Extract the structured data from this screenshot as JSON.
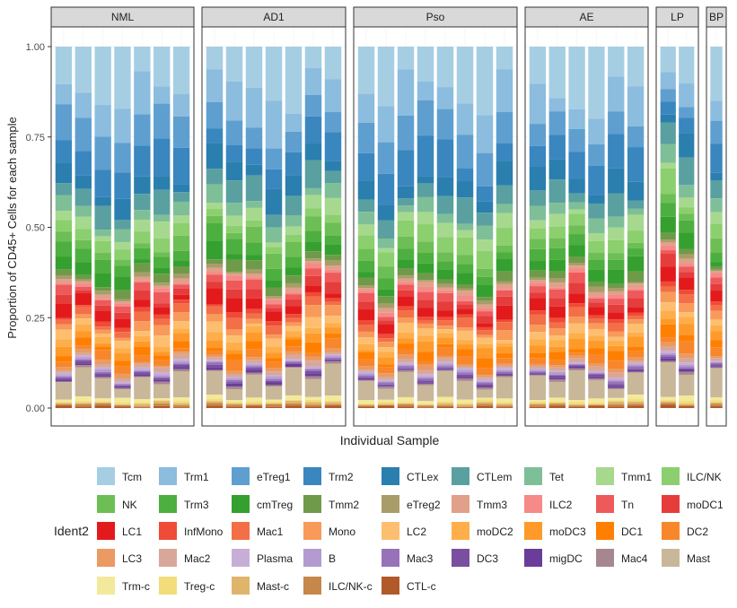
{
  "chart_data": {
    "type": "bar",
    "stacked": true,
    "facetted": true,
    "xlabel": "Individual Sample",
    "ylabel": "Proportion of CD45+ Cells for each sample",
    "ylim": [
      0,
      1
    ],
    "yticks": [
      "0.00",
      "0.25",
      "0.50",
      "0.75",
      "1.00"
    ],
    "legend": {
      "title": "Ident2",
      "placement": "bottom",
      "categories": [
        "Tcm",
        "Trm1",
        "eTreg1",
        "Trm2",
        "CTLex",
        "CTLem",
        "Tet",
        "Tmm1",
        "ILC/NK",
        "NK",
        "Trm3",
        "cmTreg",
        "Tmm2",
        "eTreg2",
        "Tmm3",
        "ILC2",
        "Tn",
        "moDC1",
        "LC1",
        "InfMono",
        "Mac1",
        "Mono",
        "LC2",
        "moDC2",
        "moDC3",
        "DC1",
        "DC2",
        "LC3",
        "Mac2",
        "Plasma",
        "B",
        "Mac3",
        "DC3",
        "migDC",
        "Mac4",
        "Mast",
        "Trm-c",
        "Treg-c",
        "Mast-c",
        "ILC/NK-c",
        "CTL-c"
      ],
      "colors": [
        "#a6cee3",
        "#8cbcde",
        "#5e9fd0",
        "#3a86bf",
        "#2a7fae",
        "#5aa0a0",
        "#7fbf98",
        "#a6d98e",
        "#8ccf6e",
        "#6dbf55",
        "#4daf3f",
        "#35a02f",
        "#6f9a4a",
        "#a89d68",
        "#e0a08a",
        "#f58a88",
        "#ee5a5a",
        "#e53c3c",
        "#e31a1c",
        "#ef4b37",
        "#f36f47",
        "#f89a5a",
        "#fdbf6f",
        "#feae4a",
        "#fe9a2a",
        "#ff7f00",
        "#f8862a",
        "#ea9a62",
        "#d9a79a",
        "#c7aed6",
        "#b39bd0",
        "#9772b8",
        "#7a4fa0",
        "#6a3d9a",
        "#a7878f",
        "#c9b79a",
        "#f3e99a",
        "#f3dc7a",
        "#deb56a",
        "#c6874a",
        "#b15928"
      ]
    },
    "facets": [
      {
        "label": "NML",
        "samples": [
          [
            0.006,
            0.004,
            0.002,
            0.003,
            0.002,
            0.01,
            0.0,
            0.0,
            0.01,
            0.015,
            0.02,
            0.02,
            0.01,
            0.004,
            0.004,
            0.0,
            0.002,
            0.003,
            0.0,
            0.004,
            0.0,
            0.0,
            0.0,
            0.004,
            0.004,
            0.0,
            0.004,
            0.01,
            0.0,
            0.0,
            0.0,
            0.0,
            0.006,
            0.004,
            0.0,
            0.0,
            0.0,
            0.04,
            0.16,
            0.1,
            0.025,
            0.1,
            0.02,
            0.13,
            0.12,
            0.14
          ],
          [
            0.0,
            0.0,
            0.0,
            0.0,
            0.0,
            0.03,
            0.004,
            0.0,
            0.005,
            0.03,
            0.02,
            0.03,
            0.02,
            0.04,
            0.03,
            0.03,
            0.015,
            0.04,
            0.025,
            0.0,
            0.02,
            0.01,
            0.02,
            0.01,
            0.02,
            0.01,
            0.015,
            0.03,
            0.03,
            0.06,
            0.08,
            0.05,
            0.06,
            0.02,
            0.02,
            0.03,
            0.02,
            0.0,
            0.0,
            0.0,
            0.0,
            0.05,
            0.02,
            0.04,
            0.07,
            0.07
          ]
        ]
      },
      {
        "label": "AD1",
        "samples": []
      },
      {
        "label": "Pso",
        "samples": []
      },
      {
        "label": "AE",
        "samples": []
      },
      {
        "label": "LP",
        "samples": []
      },
      {
        "label": "BP",
        "samples": []
      }
    ]
  }
}
